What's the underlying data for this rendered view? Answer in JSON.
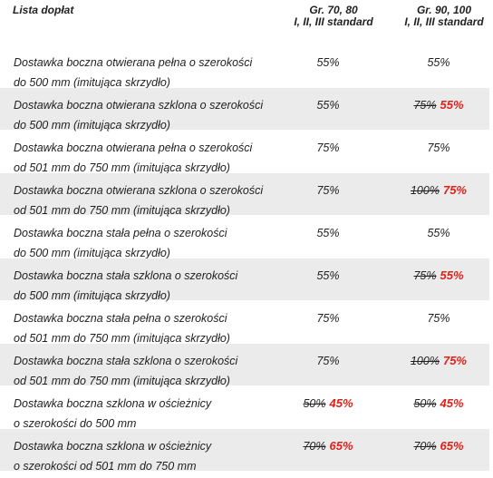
{
  "header": {
    "title": "Lista dopłat",
    "columns": [
      [
        "Gr. 70, 80",
        "I, II, III standard"
      ],
      [
        "Gr. 90, 100",
        "I, II, III standard"
      ]
    ]
  },
  "rows": [
    {
      "label": [
        "Dostawka boczna otwierana pełna o szerokości",
        "do 500 mm (imitująca skrzydło)"
      ],
      "cells": [
        {
          "price": "55%"
        },
        {
          "price": "55%"
        }
      ]
    },
    {
      "label": [
        "Dostawka boczna otwierana szklona o szerokości",
        "do 500 mm (imitująca skrzydło)"
      ],
      "cells": [
        {
          "price": "55%"
        },
        {
          "old": "75%",
          "price": "55%"
        }
      ]
    },
    {
      "label": [
        "Dostawka boczna otwierana pełna o szerokości",
        "od 501 mm do 750 mm (imitująca skrzydło)"
      ],
      "cells": [
        {
          "price": "75%"
        },
        {
          "price": "75%"
        }
      ]
    },
    {
      "label": [
        "Dostawka boczna otwierana szklona o szerokości",
        "od 501 mm do 750 mm (imitująca skrzydło)"
      ],
      "cells": [
        {
          "price": "75%"
        },
        {
          "old": "100%",
          "price": "75%"
        }
      ]
    },
    {
      "label": [
        "Dostawka boczna stała pełna o szerokości",
        "do 500 mm (imitująca skrzydło)"
      ],
      "cells": [
        {
          "price": "55%"
        },
        {
          "price": "55%"
        }
      ]
    },
    {
      "label": [
        "Dostawka boczna stała szklona o szerokości",
        "do 500 mm (imitująca skrzydło)"
      ],
      "cells": [
        {
          "price": "55%"
        },
        {
          "old": "75%",
          "price": "55%"
        }
      ]
    },
    {
      "label": [
        "Dostawka boczna stała pełna o szerokości",
        "od 501 mm do 750 mm (imitująca skrzydło)"
      ],
      "cells": [
        {
          "price": "75%"
        },
        {
          "price": "75%"
        }
      ]
    },
    {
      "label": [
        "Dostawka boczna stała szklona o szerokości",
        "od 501 mm do 750 mm (imitująca skrzydło)"
      ],
      "cells": [
        {
          "price": "75%"
        },
        {
          "old": "100%",
          "price": "75%"
        }
      ]
    },
    {
      "label": [
        "Dostawka boczna szklona w ościeżnicy",
        "o szerokości do 500 mm"
      ],
      "cells": [
        {
          "old": "50%",
          "price": "45%"
        },
        {
          "old": "50%",
          "price": "45%"
        }
      ]
    },
    {
      "label": [
        "Dostawka boczna szklona w ościeżnicy",
        "o szerokości od 501 mm do 750 mm"
      ],
      "cells": [
        {
          "old": "70%",
          "price": "65%"
        },
        {
          "old": "70%",
          "price": "65%"
        }
      ]
    }
  ]
}
